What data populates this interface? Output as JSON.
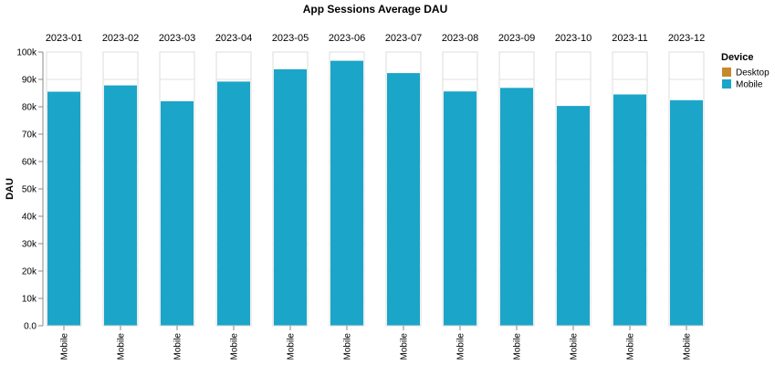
{
  "chart_data": {
    "type": "bar",
    "title": "App Sessions Average DAU",
    "ylabel": "DAU",
    "ylim": [
      0,
      100000
    ],
    "yticks": [
      "0.0",
      "10k",
      "20k",
      "30k",
      "40k",
      "50k",
      "60k",
      "70k",
      "80k",
      "90k",
      "100k"
    ],
    "categories": [
      "2023-01",
      "2023-02",
      "2023-03",
      "2023-04",
      "2023-05",
      "2023-06",
      "2023-07",
      "2023-08",
      "2023-09",
      "2023-10",
      "2023-11",
      "2023-12"
    ],
    "inner_category": "Mobile",
    "series": [
      {
        "name": "Mobile",
        "color": "#1ba5c8",
        "values": [
          85500,
          87800,
          82000,
          89200,
          93700,
          96800,
          92300,
          85600,
          86900,
          80300,
          84500,
          82400
        ]
      }
    ],
    "legend": {
      "title": "Device",
      "position": "top-right",
      "items": [
        {
          "label": "Desktop",
          "color": "#c8892a"
        },
        {
          "label": "Mobile",
          "color": "#1ba5c8"
        }
      ]
    },
    "grid": true
  }
}
